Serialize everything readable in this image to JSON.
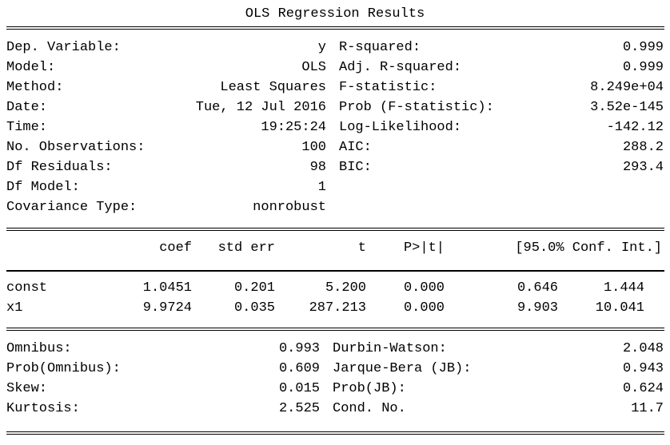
{
  "title": "OLS Regression Results",
  "top_info": {
    "left": [
      {
        "label": "Dep. Variable:",
        "value": "y"
      },
      {
        "label": "Model:",
        "value": "OLS"
      },
      {
        "label": "Method:",
        "value": "Least Squares"
      },
      {
        "label": "Date:",
        "value": "Tue, 12 Jul 2016"
      },
      {
        "label": "Time:",
        "value": "19:25:24"
      },
      {
        "label": "No. Observations:",
        "value": "100"
      },
      {
        "label": "Df Residuals:",
        "value": "98"
      },
      {
        "label": "Df Model:",
        "value": "1"
      },
      {
        "label": "Covariance Type:",
        "value": "nonrobust"
      }
    ],
    "right": [
      {
        "label": "R-squared:",
        "value": "0.999"
      },
      {
        "label": "Adj. R-squared:",
        "value": "0.999"
      },
      {
        "label": "F-statistic:",
        "value": "8.249e+04"
      },
      {
        "label": "Prob (F-statistic):",
        "value": "3.52e-145"
      },
      {
        "label": "Log-Likelihood:",
        "value": "-142.12"
      },
      {
        "label": "AIC:",
        "value": "288.2"
      },
      {
        "label": "BIC:",
        "value": "293.4"
      }
    ]
  },
  "coef_table": {
    "headers": {
      "coef": "coef",
      "std_err": "std err",
      "t": "t",
      "p": "P>|t|",
      "ci": "[95.0% Conf. Int.]"
    },
    "rows": [
      {
        "name": "const",
        "coef": "1.0451",
        "std_err": "0.201",
        "t": "5.200",
        "p": "0.000",
        "ci_low": "0.646",
        "ci_high": "1.444"
      },
      {
        "name": "x1",
        "coef": "9.9724",
        "std_err": "0.035",
        "t": "287.213",
        "p": "0.000",
        "ci_low": "9.903",
        "ci_high": "10.041"
      }
    ]
  },
  "diagnostics": {
    "left": [
      {
        "label": "Omnibus:",
        "value": "0.993"
      },
      {
        "label": "Prob(Omnibus):",
        "value": "0.609"
      },
      {
        "label": "Skew:",
        "value": "0.015"
      },
      {
        "label": "Kurtosis:",
        "value": "2.525"
      }
    ],
    "right": [
      {
        "label": "Durbin-Watson:",
        "value": "2.048"
      },
      {
        "label": "Jarque-Bera (JB):",
        "value": "0.943"
      },
      {
        "label": "Prob(JB):",
        "value": "0.624"
      },
      {
        "label": "Cond. No.",
        "value": "11.7"
      }
    ]
  }
}
